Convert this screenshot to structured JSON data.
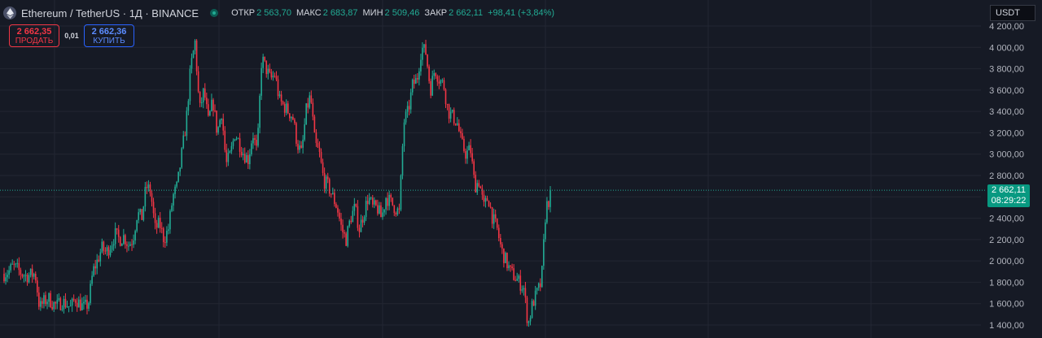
{
  "header": {
    "symbol_title": "Ethereum / TetherUS · 1Д · BINANCE",
    "symbol_icon": "ethereum-icon",
    "open_label": "ОТКР",
    "open_value": "2 563,70",
    "high_label": "МАКС",
    "high_value": "2 683,87",
    "low_label": "МИН",
    "low_value": "2 509,46",
    "close_label": "ЗАКР",
    "close_value": "2 662,11",
    "change_value": "+98,41 (+3,84%)"
  },
  "trade": {
    "sell_price": "2 662,35",
    "sell_label": "ПРОДАТЬ",
    "spread": "0,01",
    "buy_price": "2 662,36",
    "buy_label": "КУПИТЬ"
  },
  "currency": "USDT",
  "last_price": {
    "value": "2 662,11",
    "countdown": "08:29:22"
  },
  "colors": {
    "background": "#161a25",
    "up": "#22ab94",
    "down": "#f23645",
    "grid": "#232632",
    "axis_text": "#b2b5be",
    "tag": "#089981"
  },
  "chart_data": {
    "type": "candlestick",
    "y_axis_labels": [
      "4 200,00",
      "4 000,00",
      "3 800,00",
      "3 600,00",
      "3 400,00",
      "3 200,00",
      "3 000,00",
      "2 800,00",
      "2 600,00",
      "2 400,00",
      "2 200,00",
      "2 000,00",
      "1 800,00",
      "1 600,00",
      "1 400,00"
    ],
    "ylim": [
      1380,
      4260
    ],
    "grid": true,
    "last_price": 2662.11,
    "series_path": [
      [
        1880,
        1900
      ],
      [
        1950,
        1920
      ],
      [
        1880,
        1860
      ],
      [
        1870,
        1880
      ],
      [
        1560,
        1620
      ],
      [
        1650,
        1600
      ],
      [
        1580,
        1620
      ],
      [
        1600,
        1560
      ],
      [
        1650,
        1600
      ],
      [
        1560,
        1600
      ],
      [
        1900,
        2000
      ],
      [
        2120,
        2080
      ],
      [
        2150,
        2250
      ],
      [
        2200,
        2230
      ],
      [
        2150,
        2200
      ],
      [
        2450,
        2400
      ],
      [
        2700,
        2650
      ],
      [
        2300,
        2350
      ],
      [
        2200,
        2300
      ],
      [
        2600,
        2700
      ],
      [
        3000,
        3300
      ],
      [
        3800,
        4050
      ],
      [
        3400,
        3600
      ],
      [
        3300,
        3500
      ],
      [
        3200,
        3400
      ],
      [
        2900,
        3000
      ],
      [
        3200,
        3100
      ],
      [
        3000,
        2950
      ],
      [
        3200,
        3000
      ],
      [
        3900,
        3800
      ],
      [
        3700,
        3750
      ],
      [
        3500,
        3450
      ],
      [
        3400,
        3350
      ],
      [
        3100,
        3000
      ],
      [
        3400,
        3550
      ],
      [
        3100,
        3000
      ],
      [
        2750,
        2700
      ],
      [
        2600,
        2500
      ],
      [
        2300,
        2200
      ],
      [
        2400,
        2500
      ],
      [
        2300,
        2450
      ],
      [
        2600,
        2500
      ],
      [
        2500,
        2400
      ],
      [
        2600,
        2550
      ],
      [
        2500,
        2450
      ],
      [
        3300,
        3400
      ],
      [
        3650,
        3700
      ],
      [
        4000,
        3950
      ],
      [
        3600,
        3800
      ],
      [
        3700,
        3650
      ],
      [
        3400,
        3350
      ],
      [
        3300,
        3100
      ],
      [
        3000,
        3050
      ],
      [
        2700,
        2750
      ],
      [
        2500,
        2600
      ],
      [
        2400,
        2300
      ],
      [
        2100,
        2000
      ],
      [
        1900,
        1850
      ],
      [
        1800,
        1750
      ],
      [
        1400,
        1600
      ],
      [
        1700,
        1800
      ],
      [
        2500,
        2600
      ]
    ]
  }
}
